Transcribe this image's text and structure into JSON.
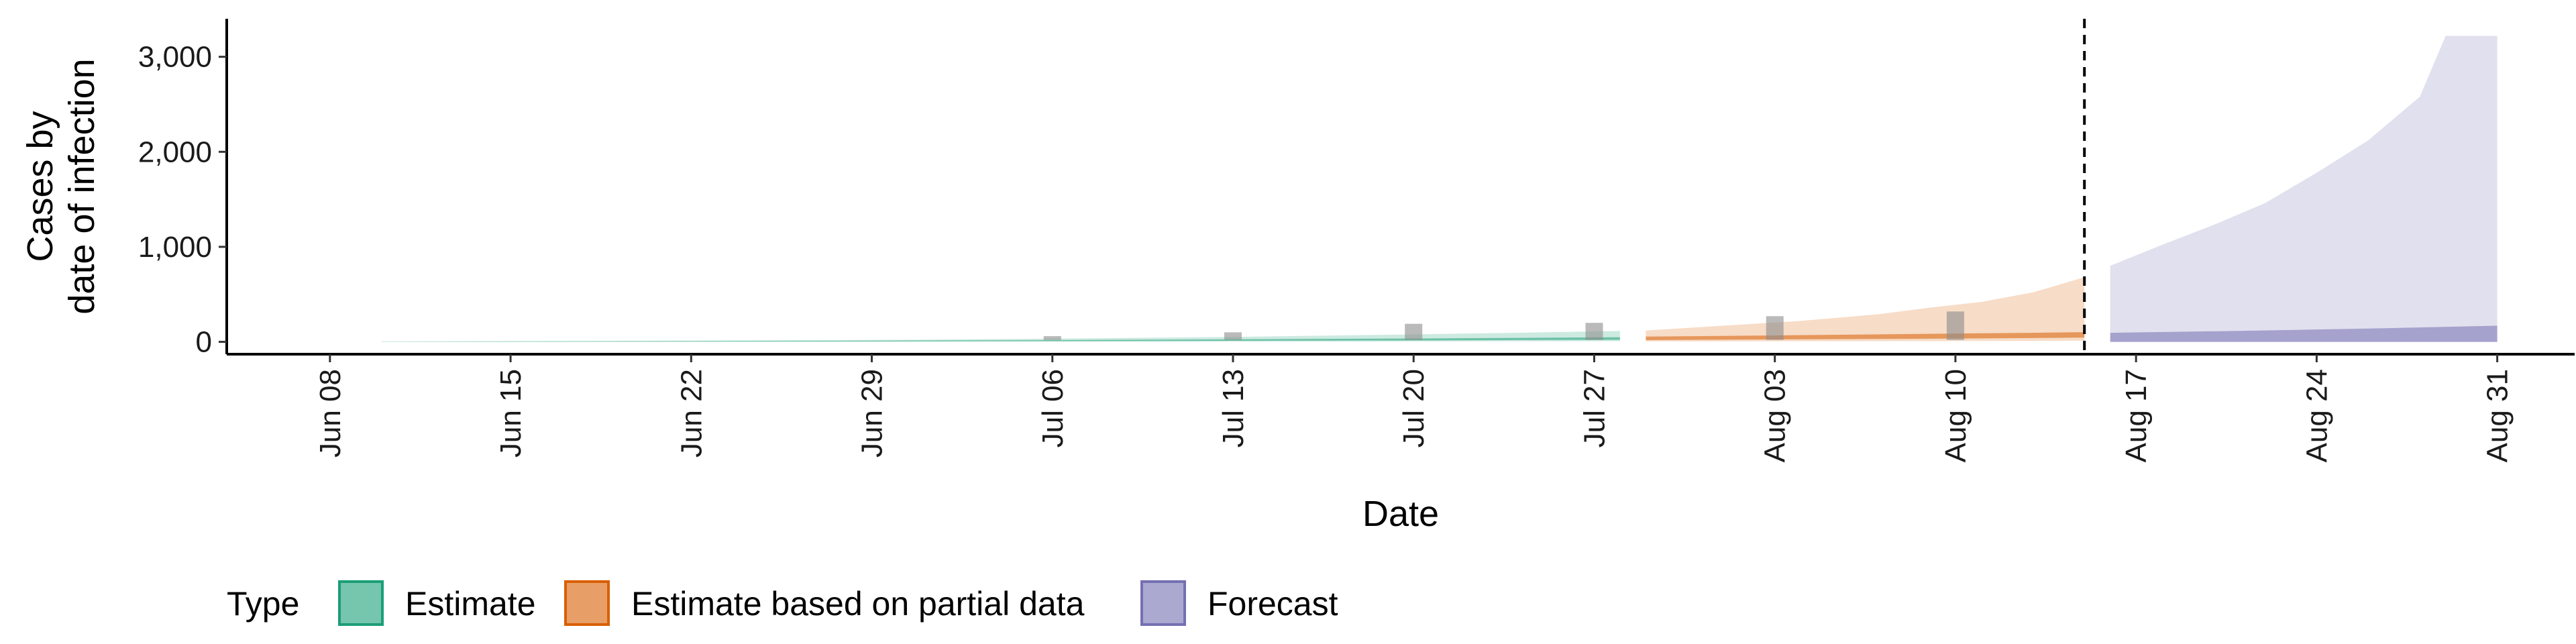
{
  "chart_data": {
    "type": "area",
    "xlabel": "Date",
    "ylabel": [
      "Cases by",
      "date of infection"
    ],
    "ylim": [
      -130,
      3400
    ],
    "xlim_days": [
      -4,
      87
    ],
    "x_origin_date": "Jun 08",
    "x_ticks": [
      {
        "label": "Jun 08",
        "day": 0
      },
      {
        "label": "Jun 15",
        "day": 7
      },
      {
        "label": "Jun 22",
        "day": 14
      },
      {
        "label": "Jun 29",
        "day": 21
      },
      {
        "label": "Jul 06",
        "day": 28
      },
      {
        "label": "Jul 13",
        "day": 35
      },
      {
        "label": "Jul 20",
        "day": 42
      },
      {
        "label": "Jul 27",
        "day": 49
      },
      {
        "label": "Aug 03",
        "day": 56
      },
      {
        "label": "Aug 10",
        "day": 63
      },
      {
        "label": "Aug 17",
        "day": 70
      },
      {
        "label": "Aug 24",
        "day": 77
      },
      {
        "label": "Aug 31",
        "day": 84
      }
    ],
    "y_ticks": [
      {
        "label": "0",
        "value": 0
      },
      {
        "label": "1,000",
        "value": 1000
      },
      {
        "label": "2,000",
        "value": 2000
      },
      {
        "label": "3,000",
        "value": 3000
      }
    ],
    "forecast_start_day": 68,
    "series": [
      {
        "name": "Estimate",
        "color": "#1b9e77",
        "outer": {
          "x": [
            2,
            7,
            14,
            21,
            28,
            35,
            42,
            47,
            50
          ],
          "low": [
            0,
            0,
            0,
            0,
            1,
            2,
            4,
            6,
            8
          ],
          "high": [
            5,
            8,
            13,
            20,
            34,
            52,
            78,
            100,
            115
          ]
        },
        "inner": {
          "x": [
            2,
            14,
            28,
            42,
            50
          ],
          "low": [
            1,
            3,
            8,
            15,
            22
          ],
          "high": [
            3,
            8,
            18,
            35,
            48
          ]
        }
      },
      {
        "name": "Estimate based on partial data",
        "color": "#d95f02",
        "outer": {
          "x": [
            51,
            54,
            57,
            60,
            62,
            64,
            66,
            68
          ],
          "low": [
            5,
            5,
            6,
            7,
            8,
            9,
            10,
            12
          ],
          "high": [
            120,
            170,
            220,
            290,
            360,
            420,
            520,
            680
          ]
        },
        "inner": {
          "x": [
            51,
            56,
            61,
            66,
            68
          ],
          "low": [
            18,
            25,
            32,
            40,
            45
          ],
          "high": [
            55,
            68,
            82,
            95,
            102
          ]
        }
      },
      {
        "name": "Forecast",
        "color": "#7570b3",
        "outer": {
          "x": [
            69,
            71,
            73,
            75,
            77,
            79,
            81,
            82,
            84
          ],
          "low": [
            0,
            0,
            0,
            0,
            0,
            0,
            0,
            0,
            0
          ],
          "high": [
            800,
            1020,
            1230,
            1460,
            1780,
            2120,
            2580,
            3220,
            3220
          ]
        },
        "inner": {
          "x": [
            69,
            74,
            79,
            84
          ],
          "low": [
            0,
            0,
            0,
            0
          ],
          "high": [
            95,
            115,
            140,
            170
          ]
        }
      }
    ],
    "observed_bars": [
      {
        "day": 28,
        "low": 20,
        "high": 60
      },
      {
        "day": 35,
        "low": 20,
        "high": 100
      },
      {
        "day": 42,
        "low": 20,
        "high": 190
      },
      {
        "day": 49,
        "low": 20,
        "high": 200
      },
      {
        "day": 56,
        "low": 20,
        "high": 270
      },
      {
        "day": 63,
        "low": 20,
        "high": 320
      }
    ],
    "legend": {
      "title": "Type",
      "position": "bottom-left",
      "items": [
        {
          "label": "Estimate",
          "color": "#1b9e77"
        },
        {
          "label": "Estimate based on partial data",
          "color": "#d95f02"
        },
        {
          "label": "Forecast",
          "color": "#7570b3"
        }
      ]
    }
  }
}
